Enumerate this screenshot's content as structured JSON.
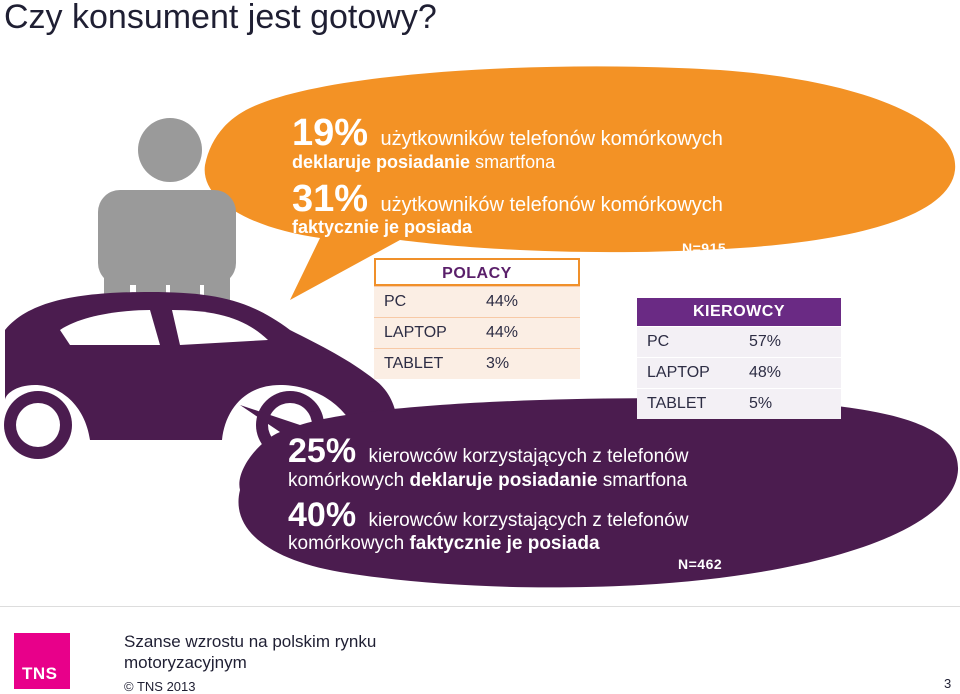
{
  "slide_title": "Czy konsument jest gotowy?",
  "orange_bubble": {
    "line1_pct": "19%",
    "line1_text": "użytkowników telefonów komórkowych",
    "line2_bold": "deklaruje posiadanie",
    "line2_text": "smartfona",
    "line3_pct": "31%",
    "line3_text": "użytkowników telefonów komórkowych",
    "line4_bold": "faktycznie je posiada",
    "n_label": "N=915",
    "color": "#f39225"
  },
  "purple_bubble": {
    "line1_pct": "25%",
    "line1_text": "kierowców korzystających z telefonów",
    "line2_text": "komórkowych",
    "line2_bold": "deklaruje posiadanie",
    "line2_tail": "smartfona",
    "line3_pct": "40%",
    "line3_text": "kierowców korzystających z telefonów",
    "line4_text": "komórkowych",
    "line4_bold": "faktycznie je posiada",
    "n_label": "N=462",
    "color": "#4b1c4f"
  },
  "polacy_table": {
    "header": "POLACY",
    "rows": [
      {
        "label": "PC",
        "value": "44%"
      },
      {
        "label": "LAPTOP",
        "value": "44%"
      },
      {
        "label": "TABLET",
        "value": "3%"
      }
    ]
  },
  "kierowcy_table": {
    "header": "KIEROWCY",
    "rows": [
      {
        "label": "PC",
        "value": "57%"
      },
      {
        "label": "LAPTOP",
        "value": "48%"
      },
      {
        "label": "TABLET",
        "value": "5%"
      }
    ]
  },
  "footer": {
    "subtitle": "Szanse wzrostu na polskim rynku motoryzacyjnym",
    "copyright": "© TNS  2013",
    "logo_text": "TNS",
    "page_number": "3"
  },
  "icons": [
    "person-icon",
    "car-icon"
  ],
  "colors": {
    "person": "#9a9a9a",
    "car": "#4b1c4f",
    "logo": "#e8008a"
  }
}
